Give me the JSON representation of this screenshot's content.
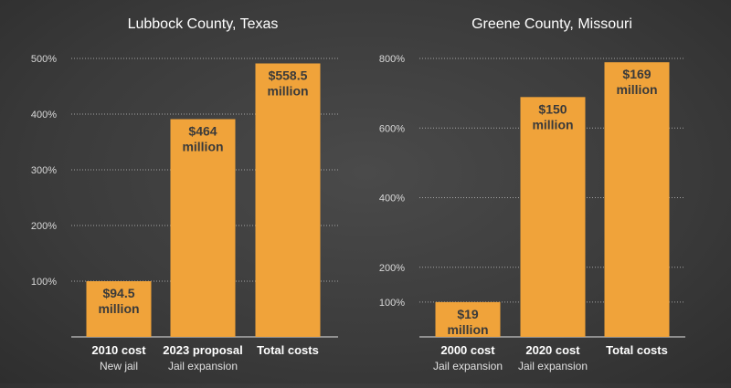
{
  "chart_data": [
    {
      "type": "bar",
      "title": "Lubbock County, Texas",
      "categories": [
        {
          "line1": "2010 cost",
          "line2": "New jail"
        },
        {
          "line1": "2023 proposal",
          "line2": "Jail expansion"
        },
        {
          "line1": "Total costs",
          "line2": ""
        }
      ],
      "values": [
        100,
        391,
        491
      ],
      "value_labels": [
        {
          "line1": "$94.5",
          "line2": "million"
        },
        {
          "line1": "$464",
          "line2": "million"
        },
        {
          "line1": "$558.5",
          "line2": "million"
        }
      ],
      "yticks": [
        100,
        200,
        300,
        400,
        500
      ],
      "ytick_labels": [
        "100%",
        "200%",
        "300%",
        "400%",
        "500%"
      ],
      "ylim": [
        0,
        500
      ],
      "color": "#f0a33a"
    },
    {
      "type": "bar",
      "title": "Greene County, Missouri",
      "categories": [
        {
          "line1": "2000 cost",
          "line2": "Jail expansion"
        },
        {
          "line1": "2020 cost",
          "line2": "Jail expansion"
        },
        {
          "line1": "Total costs",
          "line2": ""
        }
      ],
      "values": [
        100,
        689,
        789
      ],
      "value_labels": [
        {
          "line1": "$19",
          "line2": "million"
        },
        {
          "line1": "$150",
          "line2": "million"
        },
        {
          "line1": "$169",
          "line2": "million"
        }
      ],
      "yticks": [
        100,
        200,
        400,
        600,
        800
      ],
      "ytick_labels": [
        "100%",
        "200%",
        "400%",
        "600%",
        "800%"
      ],
      "ylim": [
        0,
        800
      ],
      "color": "#f0a33a"
    }
  ]
}
